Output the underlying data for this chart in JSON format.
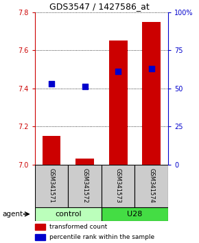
{
  "title": "GDS3547 / 1427586_at",
  "samples": [
    "GSM341571",
    "GSM341572",
    "GSM341573",
    "GSM341574"
  ],
  "bar_values": [
    7.15,
    7.03,
    7.65,
    7.75
  ],
  "bar_base": 7.0,
  "percentile_values": [
    7.425,
    7.41,
    7.49,
    7.505
  ],
  "ylim": [
    7.0,
    7.8
  ],
  "yticks": [
    7.0,
    7.2,
    7.4,
    7.6,
    7.8
  ],
  "y2lim": [
    0,
    100
  ],
  "y2ticks": [
    0,
    25,
    50,
    75,
    100
  ],
  "y2ticklabels": [
    "0",
    "25",
    "50",
    "75",
    "100%"
  ],
  "bar_color": "#cc0000",
  "dot_color": "#0000cc",
  "groups": [
    {
      "label": "control",
      "indices": [
        0,
        1
      ],
      "color": "#bbffbb"
    },
    {
      "label": "U28",
      "indices": [
        2,
        3
      ],
      "color": "#44dd44"
    }
  ],
  "agent_label": "agent",
  "legend_bar_label": "transformed count",
  "legend_dot_label": "percentile rank within the sample",
  "left_axis_color": "#cc0000",
  "right_axis_color": "#0000cc",
  "bar_width": 0.55,
  "dot_size": 30,
  "sample_box_color": "#cccccc",
  "title_fontsize": 9,
  "tick_fontsize": 7,
  "sample_fontsize": 6,
  "group_fontsize": 8,
  "legend_fontsize": 6.5
}
